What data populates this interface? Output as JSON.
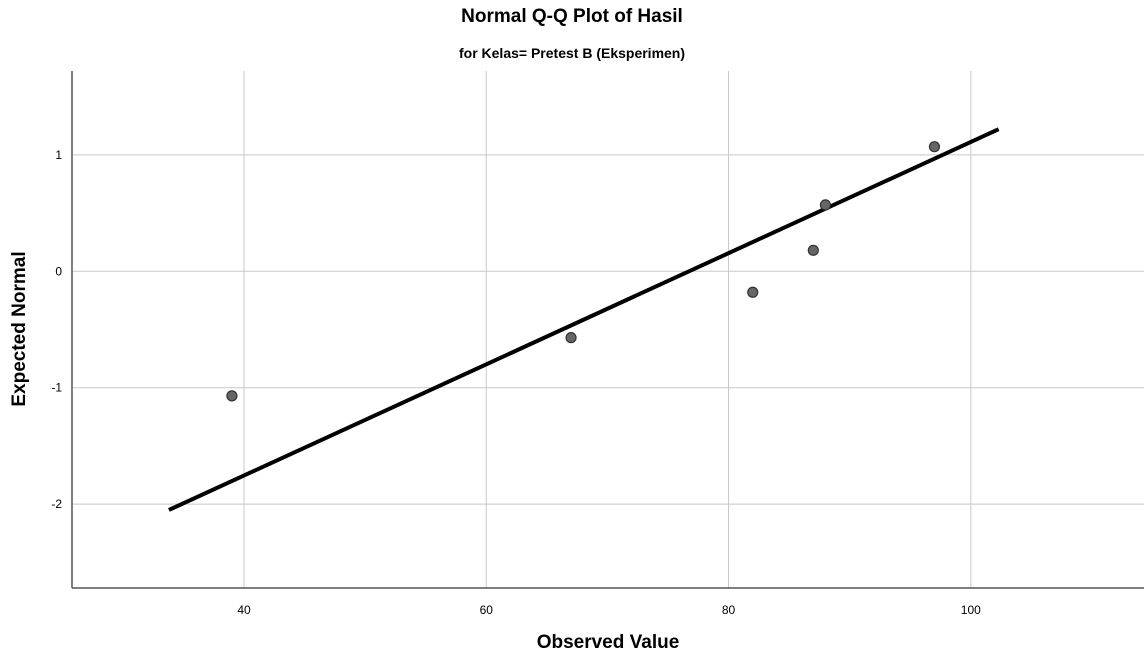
{
  "chart_data": {
    "type": "scatter",
    "title": "Normal Q-Q Plot of Hasil",
    "subtitle": "for Kelas= Pretest B (Eksperimen)",
    "xlabel": "Observed Value",
    "ylabel": "Expected Normal",
    "xlim": [
      25.8,
      114.3
    ],
    "ylim": [
      -2.72,
      1.72
    ],
    "x_ticks": [
      40,
      60,
      80,
      100
    ],
    "y_ticks": [
      1,
      0,
      -1,
      -2
    ],
    "grid": true,
    "points": [
      {
        "x": 39,
        "y": -1.07
      },
      {
        "x": 67,
        "y": -0.57
      },
      {
        "x": 82,
        "y": -0.18
      },
      {
        "x": 87,
        "y": 0.18
      },
      {
        "x": 88,
        "y": 0.57
      },
      {
        "x": 97,
        "y": 1.07
      }
    ],
    "reference_line": {
      "x": [
        33.8,
        102.3
      ],
      "y": [
        -2.05,
        1.22
      ]
    },
    "colors": {
      "point_fill": "#666666",
      "point_stroke": "#333333",
      "line": "#000000",
      "grid": "#c8c8c8",
      "axis": "#555555"
    }
  }
}
